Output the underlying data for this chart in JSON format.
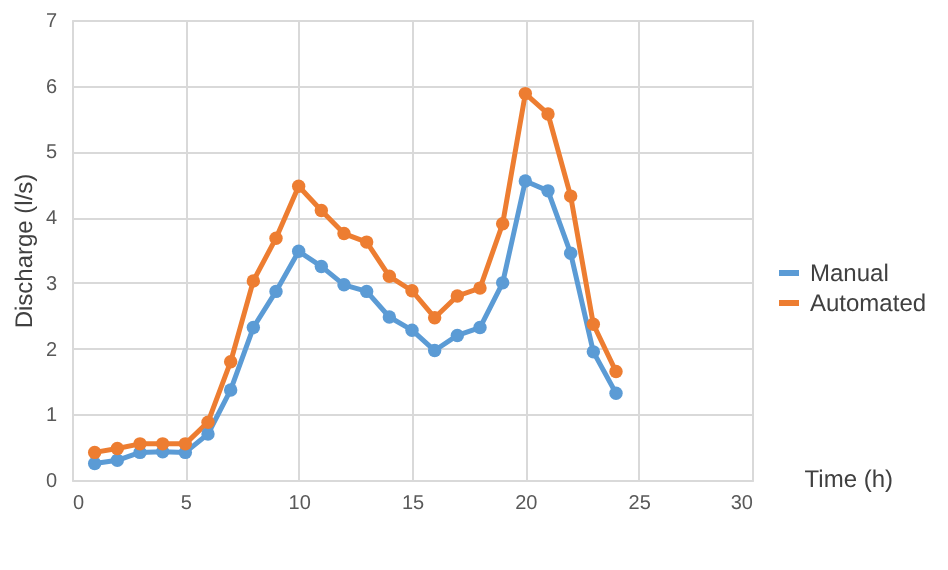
{
  "chart_data": {
    "type": "line",
    "xlabel": "Time (h)",
    "ylabel": "Discharge (l/s)",
    "x": [
      1,
      2,
      3,
      4,
      5,
      6,
      7,
      8,
      9,
      10,
      11,
      12,
      13,
      14,
      15,
      16,
      17,
      18,
      19,
      20,
      21,
      22,
      23,
      24
    ],
    "series": [
      {
        "name": "Manual",
        "color": "#5b9bd5",
        "values": [
          0.25,
          0.3,
          0.42,
          0.43,
          0.42,
          0.7,
          1.37,
          2.32,
          2.87,
          3.48,
          3.25,
          2.97,
          2.87,
          2.48,
          2.28,
          1.97,
          2.2,
          2.32,
          3.0,
          4.55,
          4.4,
          3.45,
          1.95,
          1.32
        ]
      },
      {
        "name": "Automated",
        "color": "#ed7d31",
        "values": [
          0.42,
          0.48,
          0.55,
          0.55,
          0.55,
          0.88,
          1.8,
          3.03,
          3.68,
          4.47,
          4.1,
          3.75,
          3.62,
          3.1,
          2.88,
          2.47,
          2.8,
          2.92,
          3.9,
          5.88,
          5.57,
          4.32,
          2.37,
          1.65
        ]
      }
    ],
    "xlim": [
      0,
      30
    ],
    "xticks": [
      0,
      5,
      10,
      15,
      20,
      25,
      30
    ],
    "ylim": [
      0,
      7
    ],
    "yticks": [
      0,
      1,
      2,
      3,
      4,
      5,
      6,
      7
    ],
    "grid": true,
    "legend": "right",
    "marker": "circle",
    "line_style": "solid"
  }
}
